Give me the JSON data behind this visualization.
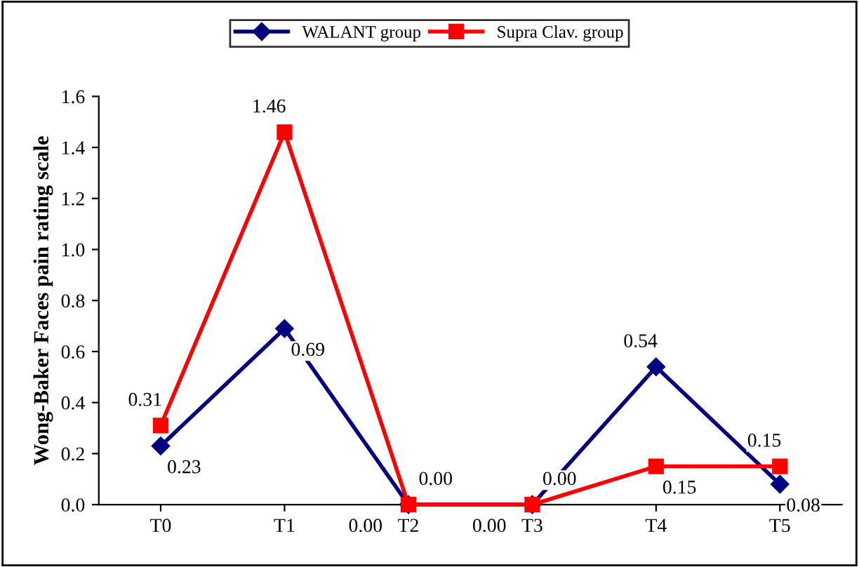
{
  "chart_data": {
    "type": "line",
    "ylabel": "Wong-Baker Faces pain rating scale",
    "categories": [
      "T0",
      "T1",
      "T2",
      "T3",
      "T4",
      "T5"
    ],
    "series": [
      {
        "name": "WALANT group",
        "color": "#000080",
        "marker": "diamond",
        "values": [
          0.23,
          0.69,
          0.0,
          0.0,
          0.54,
          0.08
        ],
        "value_labels": [
          "0.23",
          "0.69",
          "0.00",
          "0.00",
          "0.54",
          "0.08"
        ]
      },
      {
        "name": "Supra Clav. group",
        "color": "#ff0000",
        "marker": "square",
        "values": [
          0.31,
          1.46,
          0.0,
          0.0,
          0.15,
          0.15
        ],
        "value_labels": [
          "0.31",
          "1.46",
          "0.00",
          "0.00",
          "0.15",
          "0.15"
        ]
      }
    ],
    "ylim": [
      0,
      1.6
    ],
    "yticks": [
      {
        "value": 0,
        "label": "0.0"
      },
      {
        "value": 0.2,
        "label": "0.2"
      },
      {
        "value": 0.4,
        "label": "0.4"
      },
      {
        "value": 0.6,
        "label": "0.6"
      },
      {
        "value": 0.8,
        "label": "0.8"
      },
      {
        "value": 1.0,
        "label": "1.0"
      },
      {
        "value": 1.2,
        "label": "1.2"
      },
      {
        "value": 1.4,
        "label": "1.4"
      },
      {
        "value": 1.6,
        "label": "1.6"
      }
    ],
    "grid": false,
    "legend": "top",
    "line_style": "solid"
  }
}
